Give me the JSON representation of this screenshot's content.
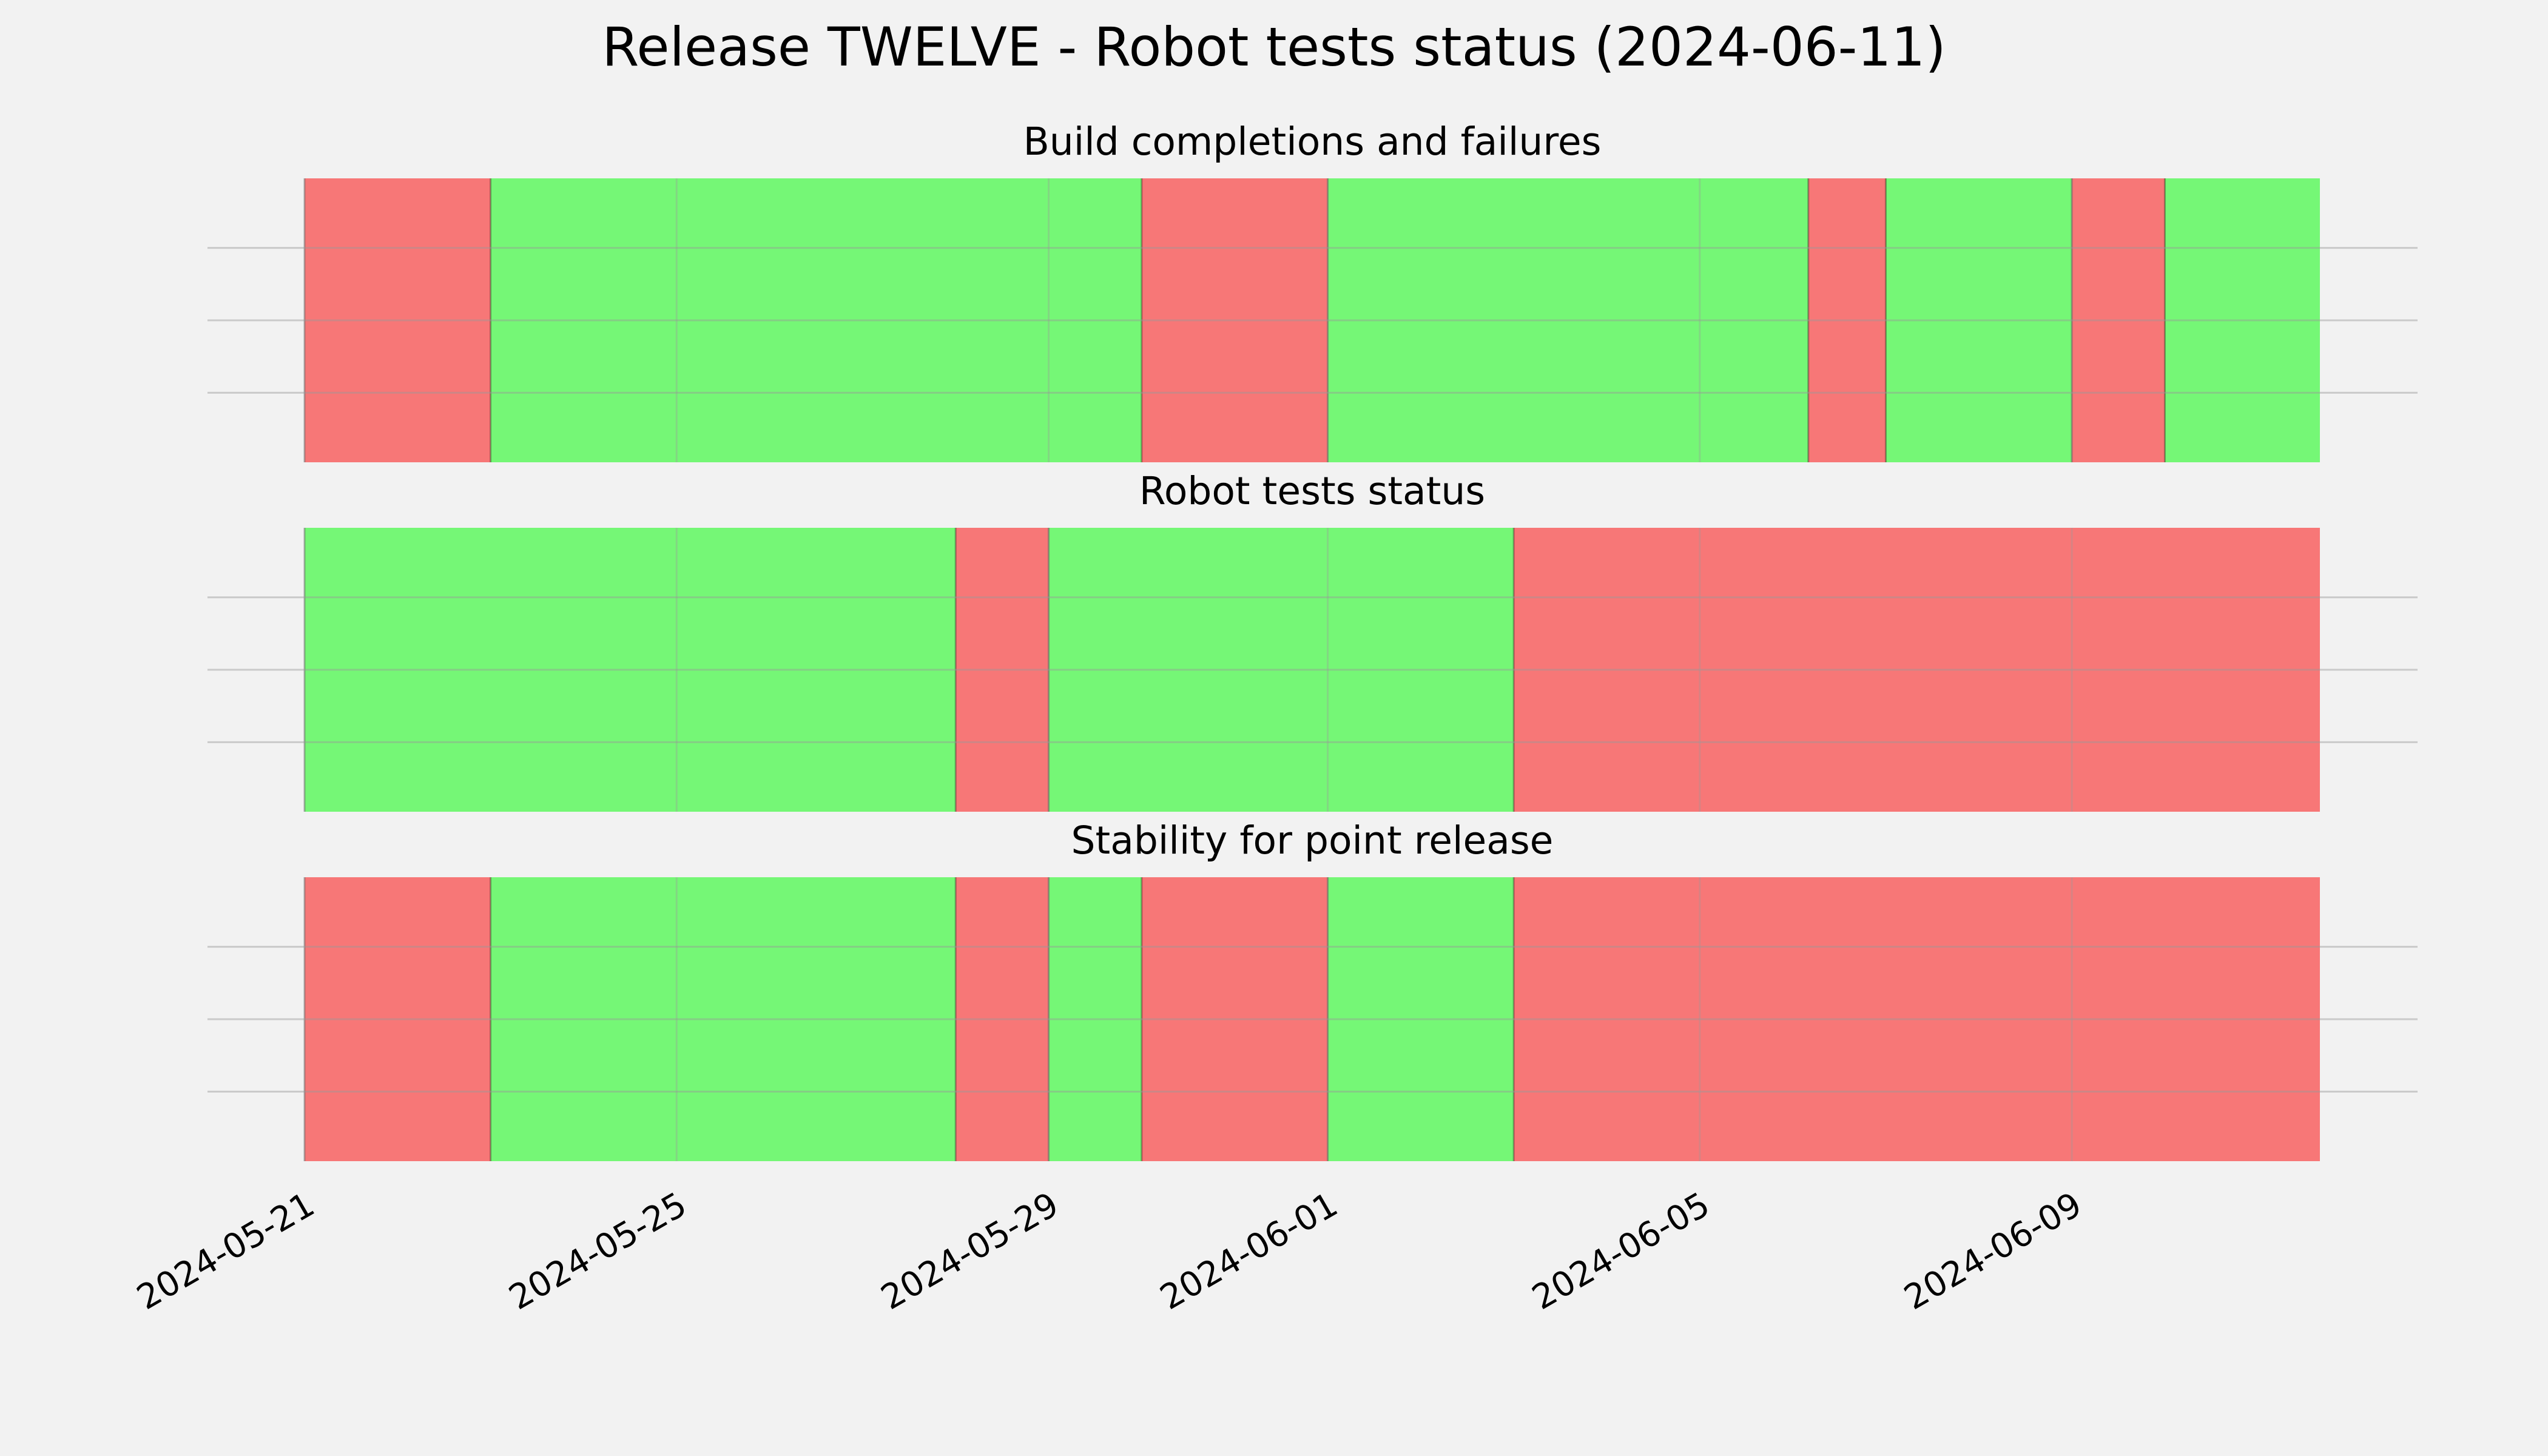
{
  "chart_data": {
    "type": "timeline",
    "title": "Release TWELVE - Robot tests status (2024-06-11)",
    "x_range": [
      "2024-05-21",
      "2024-06-11 16:00"
    ],
    "x_ticks": [
      "2024-05-21",
      "2024-05-25",
      "2024-05-29",
      "2024-06-01",
      "2024-06-05",
      "2024-06-09"
    ],
    "grid": true,
    "colors": {
      "success": "#75f776",
      "failure": "#f77777",
      "background": "#f2f2f2"
    },
    "panels": [
      {
        "title": "Build completions and failures",
        "segments": [
          {
            "start": "2024-05-21",
            "end": "2024-05-23",
            "status": "failure"
          },
          {
            "start": "2024-05-23",
            "end": "2024-05-30",
            "status": "success"
          },
          {
            "start": "2024-05-30",
            "end": "2024-06-01",
            "status": "failure"
          },
          {
            "start": "2024-06-01",
            "end": "2024-06-06 04:00",
            "status": "success"
          },
          {
            "start": "2024-06-06 04:00",
            "end": "2024-06-07",
            "status": "failure"
          },
          {
            "start": "2024-06-07",
            "end": "2024-06-09",
            "status": "success"
          },
          {
            "start": "2024-06-09",
            "end": "2024-06-10",
            "status": "failure"
          },
          {
            "start": "2024-06-10",
            "end": "2024-06-11 16:00",
            "status": "success"
          }
        ]
      },
      {
        "title": "Robot tests status",
        "segments": [
          {
            "start": "2024-05-21",
            "end": "2024-05-28",
            "status": "success"
          },
          {
            "start": "2024-05-28",
            "end": "2024-05-29",
            "status": "failure"
          },
          {
            "start": "2024-05-29",
            "end": "2024-06-03",
            "status": "success"
          },
          {
            "start": "2024-06-03",
            "end": "2024-06-11 16:00",
            "status": "failure"
          }
        ]
      },
      {
        "title": "Stability for point release",
        "segments": [
          {
            "start": "2024-05-21",
            "end": "2024-05-23",
            "status": "failure"
          },
          {
            "start": "2024-05-23",
            "end": "2024-05-28",
            "status": "success"
          },
          {
            "start": "2024-05-28",
            "end": "2024-05-29",
            "status": "failure"
          },
          {
            "start": "2024-05-29",
            "end": "2024-05-30",
            "status": "success"
          },
          {
            "start": "2024-05-30",
            "end": "2024-06-01",
            "status": "failure"
          },
          {
            "start": "2024-06-01",
            "end": "2024-06-03",
            "status": "success"
          },
          {
            "start": "2024-06-03",
            "end": "2024-06-11 16:00",
            "status": "failure"
          }
        ]
      }
    ]
  }
}
